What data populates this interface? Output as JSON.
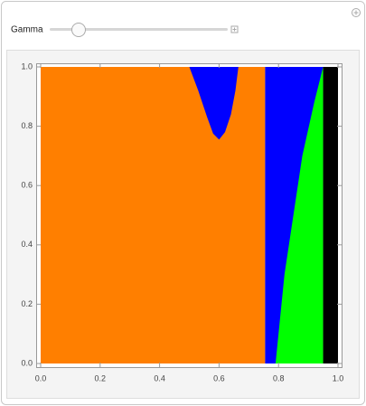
{
  "control": {
    "label": "Gamma"
  },
  "chart_data": {
    "type": "region",
    "xlim": [
      0,
      1
    ],
    "ylim": [
      0,
      1
    ],
    "xticks": [
      {
        "value": 0,
        "label": "0.0"
      },
      0.2,
      0.4,
      0.6,
      0.8,
      {
        "value": 1,
        "label": "1.0"
      }
    ],
    "yticks": [
      {
        "value": 0,
        "label": "0.0"
      },
      0.2,
      0.4,
      0.6,
      0.8,
      {
        "value": 1,
        "label": "1.0"
      }
    ],
    "regions": [
      {
        "color": "#ff7f00",
        "x": [
          0,
          0.755,
          0.755,
          0
        ],
        "y": [
          0,
          0,
          1,
          1
        ]
      },
      {
        "color": "#0000ff",
        "x": [
          0.5,
          0.53,
          0.56,
          0.58,
          0.6,
          0.62,
          0.64,
          0.655,
          0.665
        ],
        "y": [
          1,
          0.92,
          0.83,
          0.775,
          0.755,
          0.78,
          0.84,
          0.92,
          1
        ]
      },
      {
        "color": "#0000ff",
        "x": [
          0.755,
          0.95,
          0.95,
          0.755
        ],
        "y": [
          0,
          0,
          1,
          1
        ]
      },
      {
        "color": "#00ff00",
        "x": [
          0.79,
          0.8,
          0.82,
          0.85,
          0.88,
          0.92,
          0.95,
          0.95
        ],
        "y": [
          0,
          0.1,
          0.3,
          0.5,
          0.7,
          0.88,
          1,
          0
        ]
      },
      {
        "color": "#000000",
        "x": [
          0.95,
          1,
          1,
          0.95
        ],
        "y": [
          0,
          0,
          1,
          1
        ]
      }
    ]
  }
}
